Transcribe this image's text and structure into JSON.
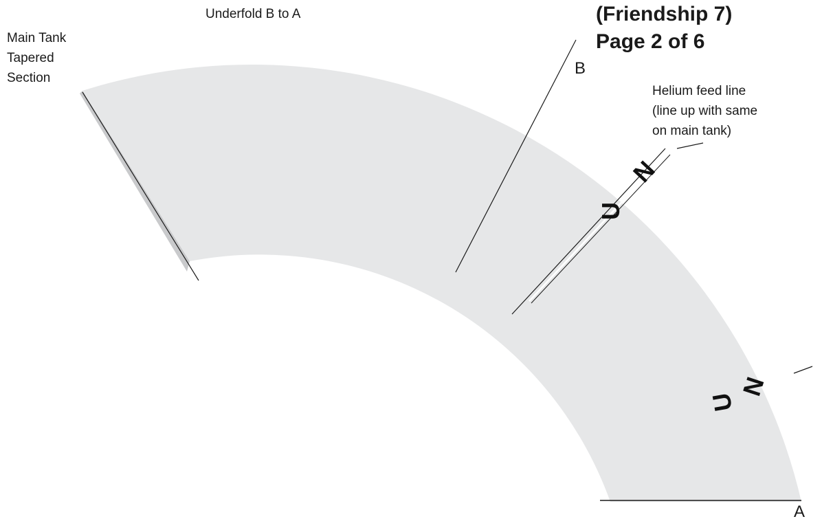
{
  "title": {
    "line1": "(Friendship 7)",
    "line2": "Page 2 of 6"
  },
  "labels": {
    "underfold": "Underfold B to A",
    "section_line1": "Main Tank",
    "section_line2": "Tapered",
    "section_line3": "Section",
    "point_b": "B",
    "point_a": "A",
    "helium_line1": "Helium feed line",
    "helium_line2": "(line up with same",
    "helium_line3": "on main tank)"
  },
  "marks": {
    "upper_n": "N",
    "upper_u": "U",
    "lower_n": "N",
    "lower_u": "U"
  },
  "colors": {
    "band_fill": "#e6e7e8",
    "shadow": "#c9cacc",
    "line": "#1a1a1a"
  }
}
